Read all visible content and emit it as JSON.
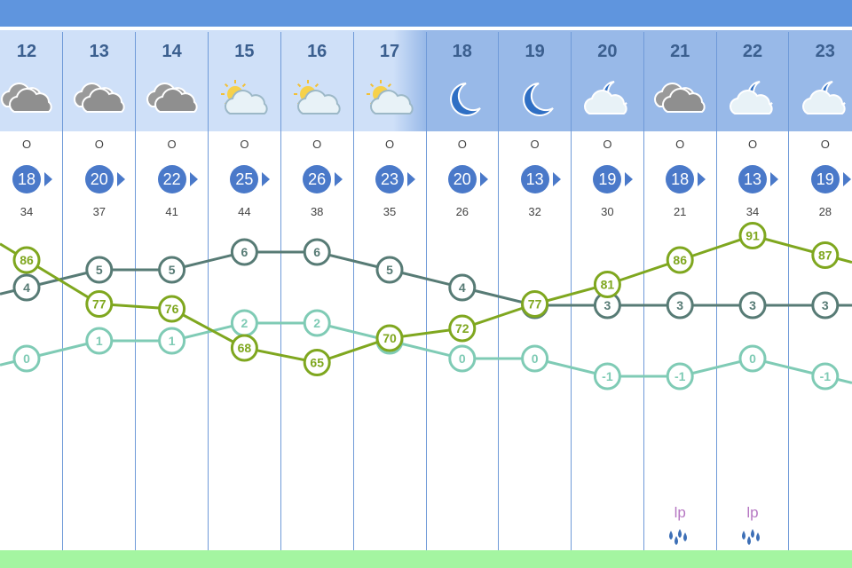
{
  "colors": {
    "top_bar": "#5f95de",
    "header_day": [
      "#cde0f7",
      "#cde0f7",
      "#cde0f7",
      "#cde0f7",
      "#cde0f7",
      "#cde0f7"
    ],
    "header_night": "#98b9e8",
    "wind_circle": "#4a79c9",
    "temperature": "#577b75",
    "humidity": "#7fa71f",
    "dewpoint": "#7fcbb5",
    "precip_label": "#b678c3",
    "bottom_bar": "#a4f5a1"
  },
  "hours": [
    "12",
    "13",
    "14",
    "15",
    "16",
    "17",
    "18",
    "19",
    "20",
    "21",
    "22",
    "23"
  ],
  "icons": [
    "cloudy-icon",
    "cloudy-icon",
    "cloudy-icon",
    "sun-cloud-icon",
    "sun-cloud-icon",
    "sun-cloud-icon",
    "moon-icon",
    "moon-icon",
    "moon-cloud-icon",
    "cloudy-icon",
    "moon-cloud-icon",
    "moon-cloud-icon"
  ],
  "wind_direction": [
    "O",
    "O",
    "O",
    "O",
    "O",
    "O",
    "O",
    "O",
    "O",
    "O",
    "O",
    "O"
  ],
  "wind_speed": [
    "18",
    "20",
    "22",
    "25",
    "26",
    "23",
    "20",
    "13",
    "19",
    "18",
    "13",
    "19"
  ],
  "wind_gust": [
    "34",
    "37",
    "41",
    "44",
    "38",
    "35",
    "26",
    "32",
    "30",
    "21",
    "34",
    "28"
  ],
  "precipitation": [
    {
      "hour": "21",
      "type": "lp"
    },
    {
      "hour": "22",
      "type": "lp"
    }
  ],
  "chart_data": {
    "type": "line",
    "x": [
      "12",
      "13",
      "14",
      "15",
      "16",
      "17",
      "18",
      "19",
      "20",
      "21",
      "22",
      "23"
    ],
    "series": [
      {
        "values": [
          4,
          5,
          5,
          6,
          6,
          5,
          4,
          3,
          3,
          3,
          3,
          3
        ]
      },
      {
        "values": [
          86,
          77,
          76,
          68,
          65,
          70,
          72,
          77,
          81,
          86,
          91,
          87
        ]
      },
      {
        "values": [
          0,
          1,
          1,
          2,
          2,
          1,
          0,
          0,
          -1,
          -1,
          0,
          -1
        ]
      }
    ]
  }
}
